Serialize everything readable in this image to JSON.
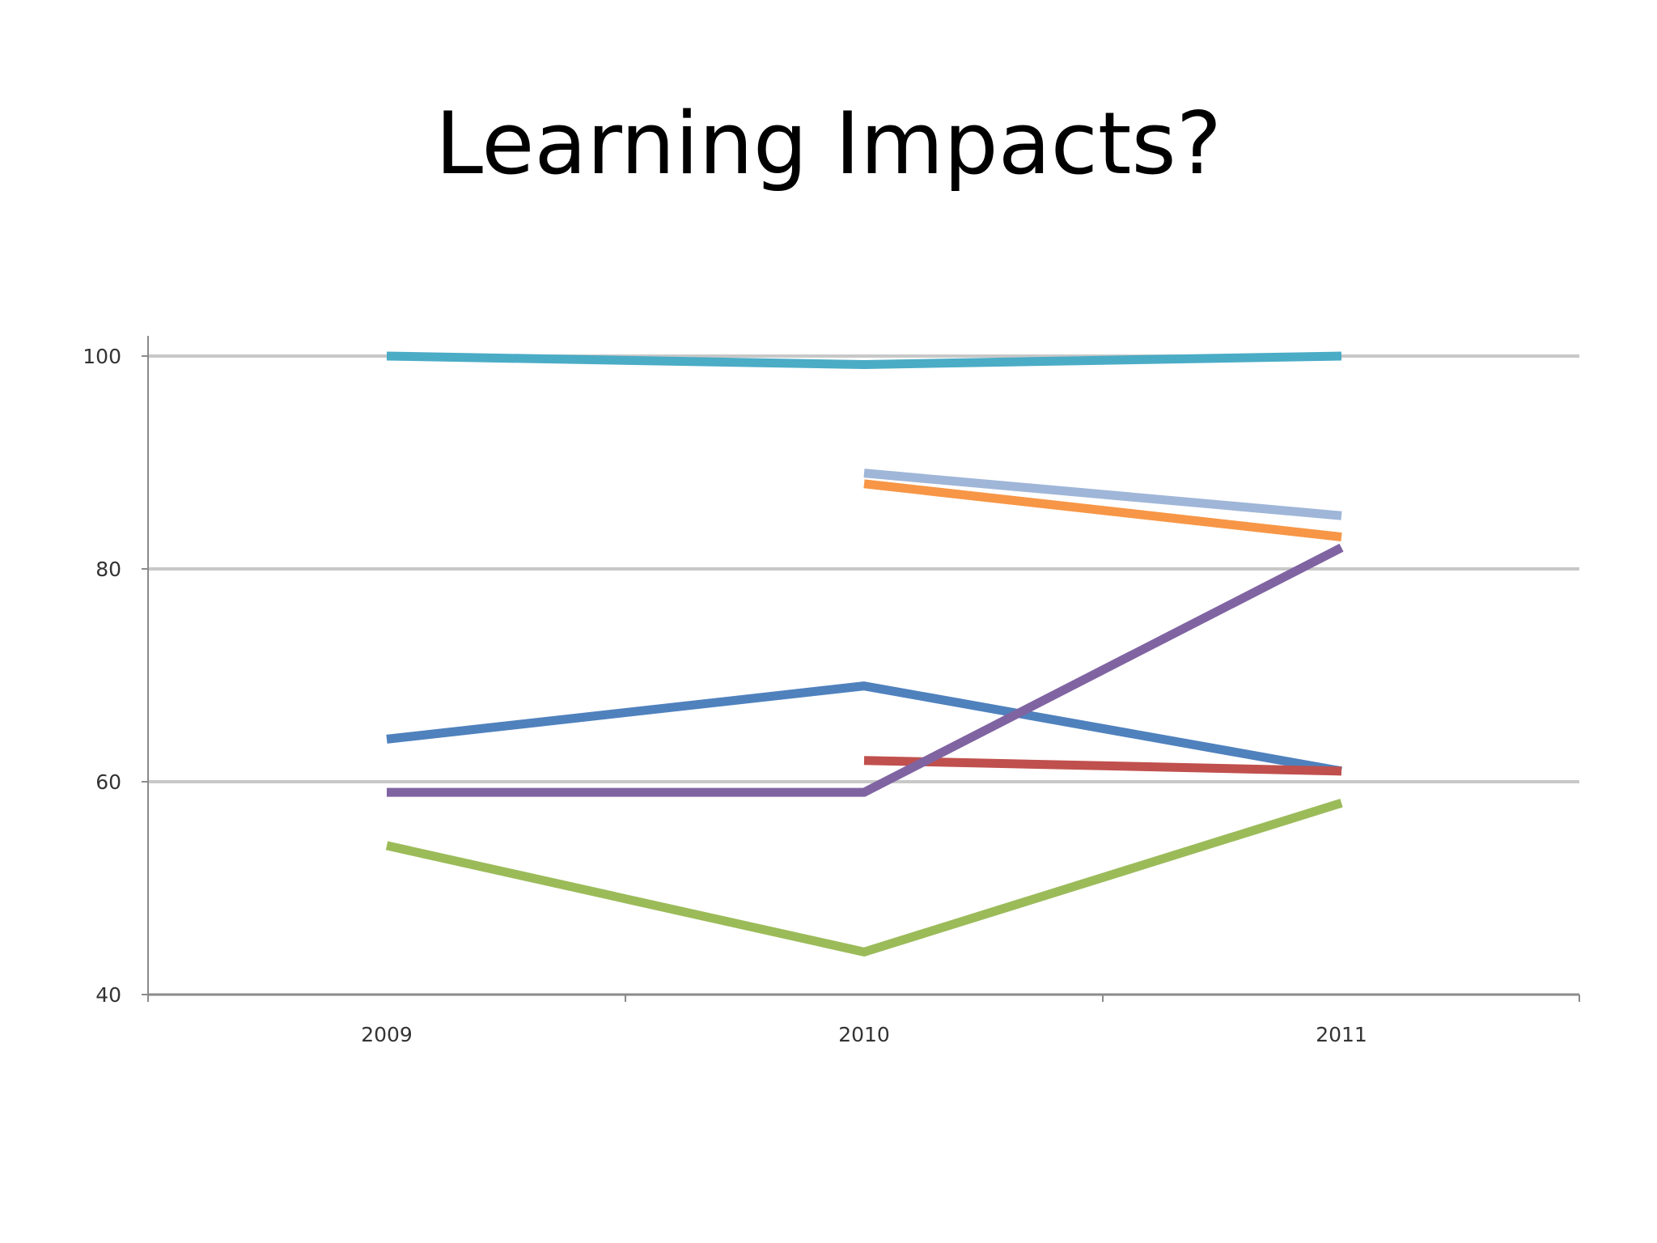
{
  "slide": {
    "title": "Learning Impacts?"
  },
  "chart_data": {
    "type": "line",
    "title": "",
    "xlabel": "",
    "ylabel": "",
    "categories": [
      "2009",
      "2010",
      "2011"
    ],
    "ylim": [
      40,
      100
    ],
    "yticks": [
      "40",
      "60",
      "80",
      "100"
    ],
    "grid": true,
    "series": [
      {
        "color": "#4BACC6",
        "values": [
          100,
          99.2,
          100
        ]
      },
      {
        "color": "#9FB6D8",
        "values": [
          null,
          89,
          85
        ]
      },
      {
        "color": "#F79646",
        "values": [
          null,
          88,
          83
        ]
      },
      {
        "color": "#4F81BD",
        "values": [
          64,
          69,
          61
        ]
      },
      {
        "color": "#C0504D",
        "values": [
          null,
          62,
          61
        ]
      },
      {
        "color": "#8064A2",
        "values": [
          59,
          59,
          82
        ]
      },
      {
        "color": "#9BBB59",
        "values": [
          54,
          44,
          58
        ]
      }
    ]
  }
}
